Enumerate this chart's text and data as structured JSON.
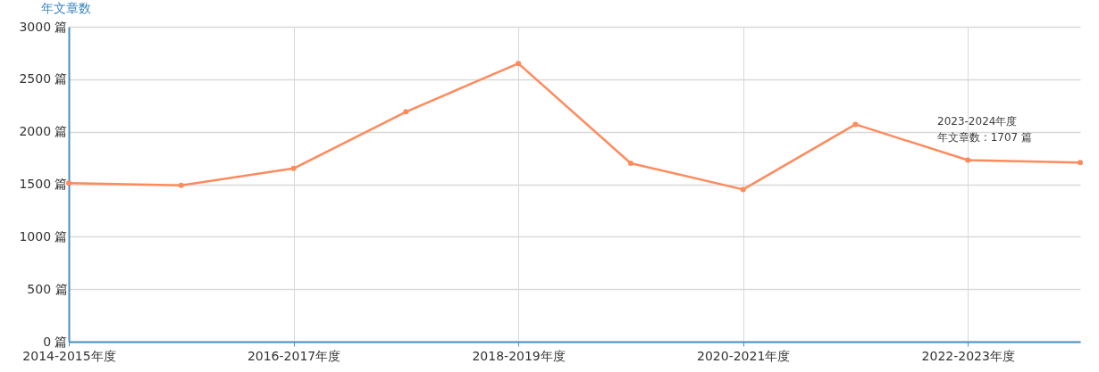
{
  "chart_data": {
    "type": "line",
    "ylabel": "年文章数",
    "categories": [
      "2014-2015年度",
      null,
      "2016-2017年度",
      null,
      "2018-2019年度",
      null,
      "2020-2021年度",
      null,
      "2022-2023年度",
      null
    ],
    "series": [
      {
        "color": "#ff8a5c",
        "values": [
          1510,
          1490,
          1650,
          2190,
          2650,
          1700,
          1450,
          2070,
          1730,
          1707
        ]
      }
    ],
    "ylim": [
      0,
      3000
    ],
    "yticks": [
      {
        "value": 0,
        "label": "0 篇"
      },
      {
        "value": 500,
        "label": "500 篇"
      },
      {
        "value": 1000,
        "label": "1000 篇"
      },
      {
        "value": 1500,
        "label": "1500 篇"
      },
      {
        "value": 2000,
        "label": "2000 篇"
      },
      {
        "value": 2500,
        "label": "2500 篇"
      },
      {
        "value": 3000,
        "label": "3000 篇"
      }
    ],
    "annotations": [
      "2023-2024年度",
      "年文章数 : 1707 篇"
    ],
    "grid": true,
    "marker": "circle"
  }
}
